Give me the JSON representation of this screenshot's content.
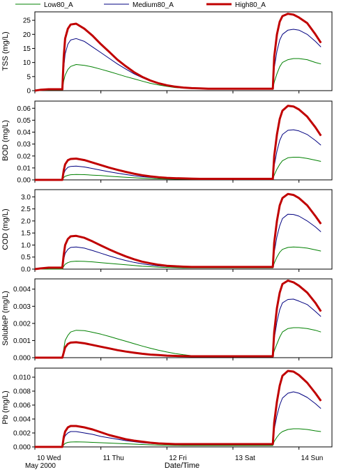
{
  "legend": [
    {
      "name": "Low80_A",
      "color": "#008000",
      "width": 1
    },
    {
      "name": "Medium80_A",
      "color": "#000080",
      "width": 1
    },
    {
      "name": "High80_A",
      "color": "#c00000",
      "width": 3
    }
  ],
  "x_axis": {
    "label": "Date/Time",
    "sublabel": "May 2000",
    "tick_labels": [
      "10 Wed",
      "11 Thu",
      "12 Fri",
      "13 Sat",
      "14 Sun"
    ],
    "tick_values": [
      0,
      24,
      48,
      72,
      96
    ],
    "range_hours": [
      0,
      108
    ]
  },
  "chart_data": [
    {
      "type": "line",
      "ylabel": "TSS (mg/L)",
      "ylim": [
        0,
        28
      ],
      "yticks": [
        0,
        5,
        10,
        15,
        20,
        25
      ],
      "yticklabels": [
        "0",
        "5",
        "10",
        "15",
        "20",
        "25"
      ],
      "x_hours": [
        0,
        2,
        5,
        10,
        10.5,
        11,
        12,
        13,
        15,
        18,
        21,
        24,
        27,
        30,
        33,
        36,
        39,
        42,
        45,
        48,
        51,
        54,
        57,
        60,
        63,
        66,
        69,
        72,
        75,
        78,
        86.5,
        87,
        88,
        89,
        90,
        92,
        94,
        96,
        99,
        102,
        104
      ],
      "series": [
        {
          "name": "Low80_A",
          "values": [
            0,
            0.1,
            0.2,
            0.2,
            3.5,
            5.5,
            7.5,
            8.6,
            9.3,
            9.0,
            8.4,
            7.6,
            6.8,
            5.9,
            5.0,
            4.2,
            3.4,
            2.6,
            2.0,
            1.5,
            1.1,
            0.9,
            0.8,
            0.7,
            0.6,
            0.5,
            0.5,
            0.5,
            0.5,
            0.5,
            0.5,
            3.0,
            6.0,
            8.5,
            10.0,
            11.0,
            11.4,
            11.4,
            11.0,
            10.0,
            9.5
          ]
        },
        {
          "name": "Medium80_A",
          "values": [
            0,
            0.2,
            0.4,
            0.4,
            8.0,
            13.0,
            16.5,
            18.0,
            18.5,
            17.5,
            15.5,
            13.5,
            11.5,
            9.5,
            7.7,
            6.0,
            4.6,
            3.4,
            2.5,
            1.8,
            1.4,
            1.1,
            0.9,
            0.8,
            0.7,
            0.6,
            0.6,
            0.6,
            0.6,
            0.6,
            0.6,
            8.0,
            14.0,
            18.0,
            20.0,
            21.5,
            21.8,
            21.5,
            20.0,
            17.5,
            15.5
          ]
        },
        {
          "name": "High80_A",
          "values": [
            0,
            0.3,
            0.5,
            0.5,
            12.0,
            18.5,
            22.0,
            23.5,
            23.8,
            22.0,
            19.5,
            16.5,
            13.8,
            11.0,
            8.7,
            6.6,
            4.9,
            3.6,
            2.6,
            1.9,
            1.4,
            1.1,
            0.9,
            0.8,
            0.7,
            0.7,
            0.7,
            0.7,
            0.7,
            0.7,
            0.7,
            12.0,
            20.0,
            24.5,
            26.5,
            27.3,
            27.0,
            26.0,
            24.0,
            20.0,
            17.0
          ]
        }
      ]
    },
    {
      "type": "line",
      "ylabel": "BOD (mg/L)",
      "ylim": [
        0,
        0.066
      ],
      "yticks": [
        0,
        0.01,
        0.02,
        0.03,
        0.04,
        0.05,
        0.06
      ],
      "yticklabels": [
        "0.00",
        "0.01",
        "0.02",
        "0.03",
        "0.04",
        "0.05",
        "0.06"
      ],
      "x_hours": [
        0,
        2,
        5,
        10,
        10.5,
        11,
        12,
        13,
        15,
        18,
        21,
        24,
        27,
        30,
        33,
        36,
        39,
        42,
        45,
        48,
        51,
        54,
        57,
        60,
        63,
        66,
        69,
        72,
        75,
        78,
        86.5,
        87,
        88,
        89,
        90,
        92,
        94,
        96,
        99,
        102,
        104
      ],
      "series": [
        {
          "name": "Low80_A",
          "values": [
            0,
            0,
            0,
            0,
            0.002,
            0.003,
            0.0038,
            0.0043,
            0.0045,
            0.0044,
            0.004,
            0.0036,
            0.0031,
            0.0026,
            0.0022,
            0.0018,
            0.0014,
            0.0011,
            0.0009,
            0.0007,
            0.0006,
            0.0005,
            0.0004,
            0.0004,
            0.0004,
            0.0004,
            0.0004,
            0.0004,
            0.0004,
            0.0004,
            0.0004,
            0.004,
            0.009,
            0.013,
            0.016,
            0.0185,
            0.019,
            0.019,
            0.018,
            0.0165,
            0.0155
          ]
        },
        {
          "name": "Medium80_A",
          "values": [
            0,
            0,
            0,
            0,
            0.005,
            0.008,
            0.0105,
            0.0113,
            0.0115,
            0.0108,
            0.0095,
            0.0081,
            0.0068,
            0.0056,
            0.0045,
            0.0035,
            0.0027,
            0.0021,
            0.0016,
            0.0013,
            0.001,
            0.0009,
            0.0008,
            0.0007,
            0.0007,
            0.0007,
            0.0007,
            0.0007,
            0.0007,
            0.0007,
            0.0007,
            0.012,
            0.024,
            0.033,
            0.038,
            0.0415,
            0.042,
            0.041,
            0.038,
            0.033,
            0.029
          ]
        },
        {
          "name": "High80_A",
          "values": [
            0,
            0,
            0,
            0,
            0.008,
            0.013,
            0.0165,
            0.0175,
            0.0178,
            0.0166,
            0.0145,
            0.0124,
            0.0103,
            0.0084,
            0.0067,
            0.0052,
            0.0039,
            0.0029,
            0.0022,
            0.0017,
            0.0014,
            0.0012,
            0.001,
            0.0009,
            0.0009,
            0.0009,
            0.0009,
            0.0009,
            0.0009,
            0.0009,
            0.0009,
            0.02,
            0.038,
            0.051,
            0.058,
            0.062,
            0.0615,
            0.059,
            0.053,
            0.044,
            0.037
          ]
        }
      ]
    },
    {
      "type": "line",
      "ylabel": "COD (mg/L)",
      "ylim": [
        0,
        3.3
      ],
      "yticks": [
        0,
        0.5,
        1.0,
        1.5,
        2.0,
        2.5,
        3.0
      ],
      "yticklabels": [
        "0.0",
        "0.5",
        "1.0",
        "1.5",
        "2.0",
        "2.5",
        "3.0"
      ],
      "x_hours": [
        0,
        2,
        5,
        10,
        10.5,
        11,
        12,
        13,
        15,
        18,
        21,
        24,
        27,
        30,
        33,
        36,
        39,
        42,
        45,
        48,
        51,
        54,
        57,
        60,
        63,
        66,
        69,
        72,
        75,
        78,
        86.5,
        87,
        88,
        89,
        90,
        92,
        94,
        96,
        99,
        102,
        104
      ],
      "series": [
        {
          "name": "Low80_A",
          "values": [
            0,
            0,
            0,
            0,
            0.12,
            0.2,
            0.27,
            0.31,
            0.33,
            0.32,
            0.3,
            0.27,
            0.24,
            0.21,
            0.18,
            0.15,
            0.12,
            0.1,
            0.08,
            0.07,
            0.06,
            0.05,
            0.05,
            0.05,
            0.05,
            0.05,
            0.05,
            0.05,
            0.05,
            0.05,
            0.05,
            0.25,
            0.5,
            0.7,
            0.82,
            0.9,
            0.92,
            0.91,
            0.87,
            0.8,
            0.75
          ]
        },
        {
          "name": "Medium80_A",
          "values": [
            0,
            0.02,
            0.04,
            0.04,
            0.4,
            0.65,
            0.82,
            0.9,
            0.92,
            0.87,
            0.77,
            0.66,
            0.55,
            0.45,
            0.36,
            0.28,
            0.22,
            0.17,
            0.13,
            0.11,
            0.09,
            0.08,
            0.07,
            0.07,
            0.07,
            0.07,
            0.07,
            0.07,
            0.07,
            0.07,
            0.07,
            0.7,
            1.35,
            1.8,
            2.1,
            2.28,
            2.27,
            2.2,
            2.0,
            1.75,
            1.55
          ]
        },
        {
          "name": "High80_A",
          "values": [
            0,
            0.03,
            0.06,
            0.06,
            0.6,
            1.0,
            1.25,
            1.36,
            1.38,
            1.3,
            1.15,
            0.98,
            0.82,
            0.67,
            0.53,
            0.41,
            0.31,
            0.24,
            0.18,
            0.14,
            0.12,
            0.1,
            0.09,
            0.09,
            0.09,
            0.09,
            0.09,
            0.09,
            0.09,
            0.09,
            0.09,
            1.1,
            2.0,
            2.65,
            2.95,
            3.12,
            3.08,
            2.95,
            2.65,
            2.2,
            1.88
          ]
        }
      ]
    },
    {
      "type": "line",
      "ylabel": "SolubleP (mg/L)",
      "ylim": [
        0,
        0.0046
      ],
      "yticks": [
        0,
        0.001,
        0.002,
        0.003,
        0.004
      ],
      "yticklabels": [
        "0.000",
        "0.001",
        "0.002",
        "0.003",
        "0.004"
      ],
      "x_hours": [
        0,
        2,
        5,
        10,
        10.5,
        11,
        12,
        13,
        15,
        18,
        21,
        24,
        27,
        30,
        33,
        36,
        39,
        42,
        45,
        48,
        51,
        54,
        57,
        60,
        63,
        66,
        69,
        72,
        75,
        78,
        86.5,
        87,
        88,
        89,
        90,
        92,
        94,
        96,
        99,
        102,
        104
      ],
      "series": [
        {
          "name": "Low80_A",
          "values": [
            0,
            0,
            0,
            0,
            0.0005,
            0.001,
            0.0013,
            0.0015,
            0.0016,
            0.00158,
            0.00148,
            0.00137,
            0.00124,
            0.0011,
            0.00096,
            0.00082,
            0.00068,
            0.00055,
            0.00043,
            0.00033,
            0.00024,
            0.00017,
            0.00012,
            0.0001,
            8e-05,
            8e-05,
            8e-05,
            8e-05,
            8e-05,
            8e-05,
            8e-05,
            0.0004,
            0.0008,
            0.0012,
            0.0015,
            0.0017,
            0.00175,
            0.00175,
            0.0017,
            0.0016,
            0.0015
          ]
        },
        {
          "name": "Medium80_A",
          "values": [
            0,
            0,
            0,
            0,
            0.0003,
            0.0006,
            0.00078,
            0.00085,
            0.00088,
            0.00082,
            0.00072,
            0.00062,
            0.00052,
            0.00043,
            0.00035,
            0.00028,
            0.00022,
            0.00017,
            0.00014,
            0.00012,
            0.0001,
            9e-05,
            8e-05,
            8e-05,
            8e-05,
            8e-05,
            8e-05,
            8e-05,
            8e-05,
            8e-05,
            8e-05,
            0.0011,
            0.0021,
            0.0028,
            0.0032,
            0.0034,
            0.00342,
            0.0033,
            0.0031,
            0.0027,
            0.0024
          ]
        },
        {
          "name": "High80_A",
          "values": [
            0,
            0,
            0,
            0,
            0.0003,
            0.0006,
            0.0008,
            0.00088,
            0.0009,
            0.00084,
            0.00074,
            0.00064,
            0.00054,
            0.00044,
            0.00036,
            0.00029,
            0.00023,
            0.00018,
            0.00015,
            0.00012,
            0.0001,
            9e-05,
            8e-05,
            8e-05,
            8e-05,
            8e-05,
            8e-05,
            8e-05,
            8e-05,
            8e-05,
            8e-05,
            0.0015,
            0.0029,
            0.0038,
            0.0043,
            0.0045,
            0.0044,
            0.0042,
            0.0038,
            0.0032,
            0.0027
          ]
        }
      ]
    },
    {
      "type": "line",
      "ylabel": "Pb (mg/L)",
      "ylim": [
        0,
        0.0113
      ],
      "yticks": [
        0,
        0.002,
        0.004,
        0.006,
        0.008,
        0.01
      ],
      "yticklabels": [
        "0.000",
        "0.002",
        "0.004",
        "0.006",
        "0.008",
        "0.010"
      ],
      "x_hours": [
        0,
        2,
        5,
        10,
        10.5,
        11,
        12,
        13,
        15,
        18,
        21,
        24,
        27,
        30,
        33,
        36,
        39,
        42,
        45,
        48,
        51,
        54,
        57,
        60,
        63,
        66,
        69,
        72,
        75,
        78,
        86.5,
        87,
        88,
        89,
        90,
        92,
        94,
        96,
        99,
        102,
        104
      ],
      "series": [
        {
          "name": "Low80_A",
          "values": [
            0,
            0,
            0,
            0,
            0.0003,
            0.0005,
            0.00065,
            0.0007,
            0.00072,
            0.0007,
            0.00065,
            0.0006,
            0.00055,
            0.0005,
            0.00045,
            0.0004,
            0.00035,
            0.0003,
            0.00026,
            0.00023,
            0.00021,
            0.0002,
            0.0002,
            0.0002,
            0.0002,
            0.0002,
            0.0002,
            0.0002,
            0.0002,
            0.0002,
            0.0002,
            0.0008,
            0.0014,
            0.0019,
            0.0022,
            0.0025,
            0.0026,
            0.0026,
            0.0025,
            0.0023,
            0.0022
          ]
        },
        {
          "name": "Medium80_A",
          "values": [
            0,
            0,
            0,
            0,
            0.001,
            0.0016,
            0.002,
            0.0022,
            0.0022,
            0.002,
            0.0018,
            0.0015,
            0.0013,
            0.0011,
            0.0009,
            0.00075,
            0.0006,
            0.0005,
            0.00042,
            0.00036,
            0.00032,
            0.0003,
            0.0003,
            0.0003,
            0.0003,
            0.0003,
            0.0003,
            0.0003,
            0.0003,
            0.0003,
            0.0003,
            0.0025,
            0.0045,
            0.006,
            0.007,
            0.0077,
            0.0079,
            0.0077,
            0.0071,
            0.0062,
            0.0055
          ]
        },
        {
          "name": "High80_A",
          "values": [
            0,
            0,
            0,
            0,
            0.0014,
            0.0022,
            0.0028,
            0.003,
            0.003,
            0.0028,
            0.0025,
            0.0021,
            0.0017,
            0.0014,
            0.0011,
            0.0009,
            0.00075,
            0.0006,
            0.0005,
            0.00045,
            0.0004,
            0.0004,
            0.0004,
            0.0004,
            0.0004,
            0.0004,
            0.0004,
            0.0004,
            0.0004,
            0.0004,
            0.0004,
            0.0035,
            0.0065,
            0.0088,
            0.0102,
            0.0109,
            0.0108,
            0.0103,
            0.0092,
            0.0077,
            0.0066
          ]
        }
      ]
    }
  ]
}
